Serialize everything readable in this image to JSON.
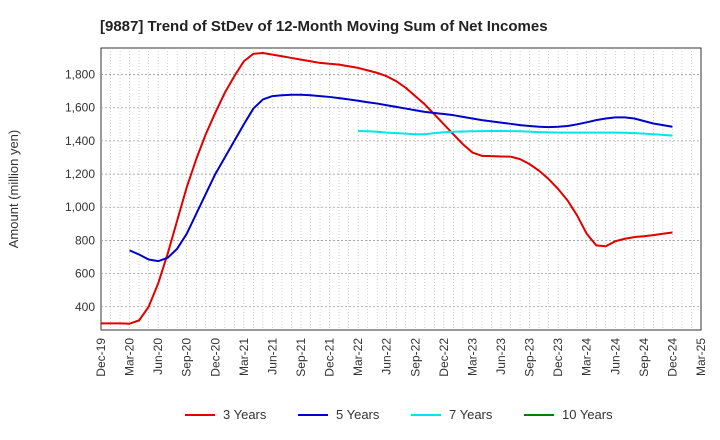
{
  "chart_data": {
    "type": "line",
    "title": "[9887]  Trend of StDev of 12-Month Moving Sum of Net Incomes",
    "xlabel": "",
    "ylabel": "Amount (million yen)",
    "x_ticks": [
      "Dec-19",
      "Mar-20",
      "Jun-20",
      "Sep-20",
      "Dec-20",
      "Mar-21",
      "Jun-21",
      "Sep-21",
      "Dec-21",
      "Mar-22",
      "Jun-22",
      "Sep-22",
      "Dec-22",
      "Mar-23",
      "Jun-23",
      "Sep-23",
      "Dec-23",
      "Mar-24",
      "Jun-24",
      "Sep-24",
      "Dec-24",
      "Mar-25"
    ],
    "y_ticks": [
      400,
      600,
      800,
      1000,
      1200,
      1400,
      1600,
      1800
    ],
    "y_tick_labels": [
      "400",
      "600",
      "800",
      "1,000",
      "1,200",
      "1,400",
      "1,600",
      "1,800"
    ],
    "ylim": [
      260,
      1960
    ],
    "x_range": [
      "2019-12",
      "2025-03"
    ],
    "grid": true,
    "legend_position": "bottom",
    "series": [
      {
        "name": "3 Years",
        "color": "#e00000",
        "points": [
          [
            "2019-12",
            300
          ],
          [
            "2020-01",
            300
          ],
          [
            "2020-02",
            300
          ],
          [
            "2020-03",
            298
          ],
          [
            "2020-04",
            318
          ],
          [
            "2020-05",
            400
          ],
          [
            "2020-06",
            540
          ],
          [
            "2020-07",
            720
          ],
          [
            "2020-08",
            920
          ],
          [
            "2020-09",
            1120
          ],
          [
            "2020-10",
            1290
          ],
          [
            "2020-11",
            1440
          ],
          [
            "2020-12",
            1570
          ],
          [
            "2021-01",
            1690
          ],
          [
            "2021-02",
            1790
          ],
          [
            "2021-03",
            1880
          ],
          [
            "2021-04",
            1925
          ],
          [
            "2021-05",
            1930
          ],
          [
            "2021-06",
            1920
          ],
          [
            "2021-07",
            1910
          ],
          [
            "2021-08",
            1900
          ],
          [
            "2021-09",
            1890
          ],
          [
            "2021-10",
            1880
          ],
          [
            "2021-11",
            1870
          ],
          [
            "2021-12",
            1865
          ],
          [
            "2022-01",
            1860
          ],
          [
            "2022-02",
            1850
          ],
          [
            "2022-03",
            1840
          ],
          [
            "2022-04",
            1825
          ],
          [
            "2022-05",
            1810
          ],
          [
            "2022-06",
            1790
          ],
          [
            "2022-07",
            1760
          ],
          [
            "2022-08",
            1720
          ],
          [
            "2022-09",
            1670
          ],
          [
            "2022-10",
            1620
          ],
          [
            "2022-11",
            1560
          ],
          [
            "2022-12",
            1500
          ],
          [
            "2023-01",
            1440
          ],
          [
            "2023-02",
            1380
          ],
          [
            "2023-03",
            1330
          ],
          [
            "2023-04",
            1310
          ],
          [
            "2023-05",
            1308
          ],
          [
            "2023-06",
            1306
          ],
          [
            "2023-07",
            1305
          ],
          [
            "2023-08",
            1290
          ],
          [
            "2023-09",
            1260
          ],
          [
            "2023-10",
            1220
          ],
          [
            "2023-11",
            1170
          ],
          [
            "2023-12",
            1110
          ],
          [
            "2024-01",
            1040
          ],
          [
            "2024-02",
            950
          ],
          [
            "2024-03",
            840
          ],
          [
            "2024-04",
            770
          ],
          [
            "2024-05",
            765
          ],
          [
            "2024-06",
            795
          ],
          [
            "2024-07",
            810
          ],
          [
            "2024-08",
            820
          ],
          [
            "2024-09",
            825
          ],
          [
            "2024-10",
            832
          ],
          [
            "2024-11",
            840
          ],
          [
            "2024-12",
            848
          ]
        ]
      },
      {
        "name": "5 Years",
        "color": "#0000cc",
        "points": [
          [
            "2020-03",
            740
          ],
          [
            "2020-04",
            715
          ],
          [
            "2020-05",
            685
          ],
          [
            "2020-06",
            675
          ],
          [
            "2020-07",
            695
          ],
          [
            "2020-08",
            750
          ],
          [
            "2020-09",
            840
          ],
          [
            "2020-10",
            960
          ],
          [
            "2020-11",
            1080
          ],
          [
            "2020-12",
            1200
          ],
          [
            "2021-01",
            1300
          ],
          [
            "2021-02",
            1400
          ],
          [
            "2021-03",
            1500
          ],
          [
            "2021-04",
            1595
          ],
          [
            "2021-05",
            1650
          ],
          [
            "2021-06",
            1670
          ],
          [
            "2021-07",
            1675
          ],
          [
            "2021-08",
            1678
          ],
          [
            "2021-09",
            1678
          ],
          [
            "2021-10",
            1675
          ],
          [
            "2021-11",
            1670
          ],
          [
            "2021-12",
            1665
          ],
          [
            "2022-01",
            1658
          ],
          [
            "2022-02",
            1650
          ],
          [
            "2022-03",
            1642
          ],
          [
            "2022-04",
            1633
          ],
          [
            "2022-05",
            1625
          ],
          [
            "2022-06",
            1615
          ],
          [
            "2022-07",
            1605
          ],
          [
            "2022-08",
            1595
          ],
          [
            "2022-09",
            1585
          ],
          [
            "2022-10",
            1575
          ],
          [
            "2022-11",
            1568
          ],
          [
            "2022-12",
            1562
          ],
          [
            "2023-01",
            1555
          ],
          [
            "2023-02",
            1545
          ],
          [
            "2023-03",
            1535
          ],
          [
            "2023-04",
            1525
          ],
          [
            "2023-05",
            1518
          ],
          [
            "2023-06",
            1510
          ],
          [
            "2023-07",
            1503
          ],
          [
            "2023-08",
            1495
          ],
          [
            "2023-09",
            1490
          ],
          [
            "2023-10",
            1485
          ],
          [
            "2023-11",
            1483
          ],
          [
            "2023-12",
            1485
          ],
          [
            "2024-01",
            1490
          ],
          [
            "2024-02",
            1500
          ],
          [
            "2024-03",
            1512
          ],
          [
            "2024-04",
            1525
          ],
          [
            "2024-05",
            1535
          ],
          [
            "2024-06",
            1542
          ],
          [
            "2024-07",
            1542
          ],
          [
            "2024-08",
            1535
          ],
          [
            "2024-09",
            1520
          ],
          [
            "2024-10",
            1505
          ],
          [
            "2024-11",
            1495
          ],
          [
            "2024-12",
            1485
          ]
        ]
      },
      {
        "name": "7 Years",
        "color": "#00e5e5",
        "points": [
          [
            "2022-03",
            1460
          ],
          [
            "2022-04",
            1458
          ],
          [
            "2022-05",
            1455
          ],
          [
            "2022-06",
            1450
          ],
          [
            "2022-07",
            1447
          ],
          [
            "2022-08",
            1444
          ],
          [
            "2022-09",
            1440
          ],
          [
            "2022-10",
            1440
          ],
          [
            "2022-11",
            1447
          ],
          [
            "2022-12",
            1452
          ],
          [
            "2023-01",
            1455
          ],
          [
            "2023-02",
            1457
          ],
          [
            "2023-03",
            1458
          ],
          [
            "2023-04",
            1459
          ],
          [
            "2023-05",
            1460
          ],
          [
            "2023-06",
            1460
          ],
          [
            "2023-07",
            1459
          ],
          [
            "2023-08",
            1458
          ],
          [
            "2023-09",
            1456
          ],
          [
            "2023-10",
            1453
          ],
          [
            "2023-11",
            1451
          ],
          [
            "2023-12",
            1450
          ],
          [
            "2024-01",
            1450
          ],
          [
            "2024-02",
            1450
          ],
          [
            "2024-03",
            1450
          ],
          [
            "2024-04",
            1450
          ],
          [
            "2024-05",
            1450
          ],
          [
            "2024-06",
            1450
          ],
          [
            "2024-07",
            1449
          ],
          [
            "2024-08",
            1447
          ],
          [
            "2024-09",
            1444
          ],
          [
            "2024-10",
            1440
          ],
          [
            "2024-11",
            1436
          ],
          [
            "2024-12",
            1432
          ]
        ]
      },
      {
        "name": "10 Years",
        "color": "#008000",
        "points": []
      }
    ]
  }
}
